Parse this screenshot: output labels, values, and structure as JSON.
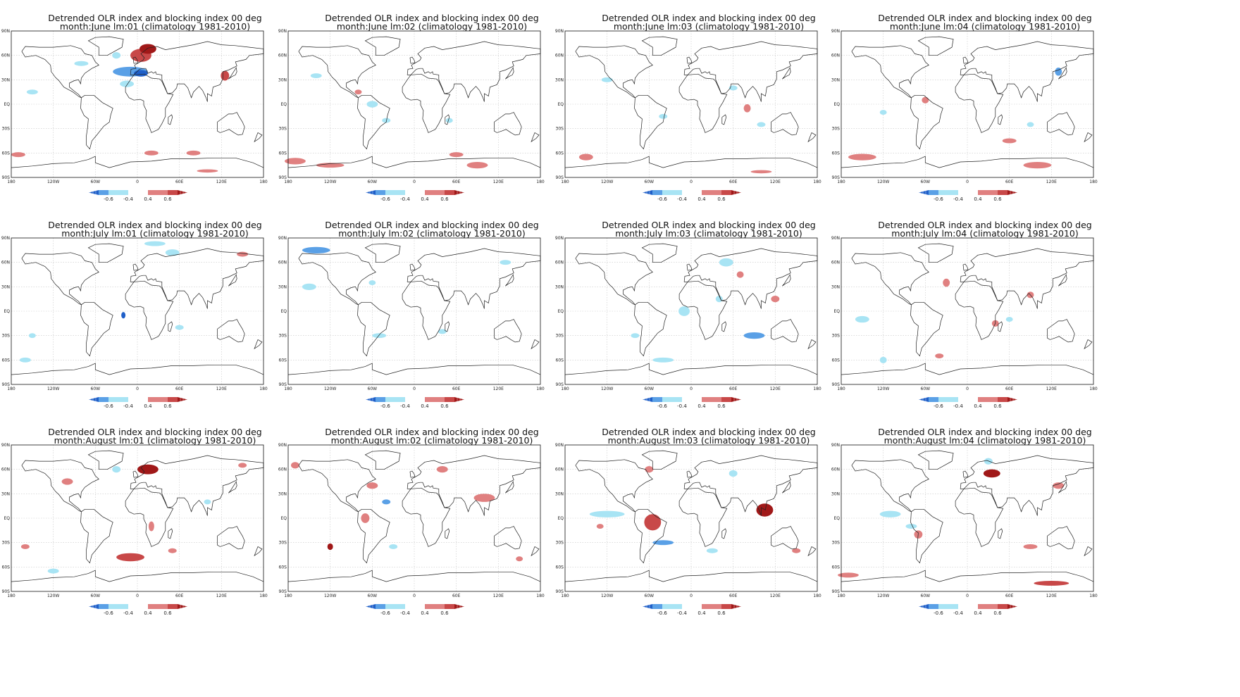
{
  "colorbar": {
    "labels": [
      "-0.6",
      "-0.4",
      "0.4",
      "0.6"
    ],
    "colors": {
      "neg_strong": "#1f5fc8",
      "neg_mid": "#5aa0e6",
      "neg_weak": "#a8e4f4",
      "pos_weak": "#e08080",
      "pos_mid": "#c84848",
      "pos_strong": "#a01818"
    }
  },
  "axes": {
    "lon_ticks": [
      "180",
      "120W",
      "60W",
      "0",
      "60E",
      "120E",
      "180"
    ],
    "lat_ticks": [
      "90N",
      "60N",
      "30N",
      "EQ",
      "30S",
      "60S",
      "90S"
    ]
  },
  "panels": [
    {
      "title": "Detrended OLR index and blocking index 00 deg",
      "subtitle": "month:June lm:01 (climatology 1981-2010)",
      "blobs": [
        [
          "p",
          5,
          60,
          15,
          8,
          0.55
        ],
        [
          "p",
          15,
          68,
          12,
          6,
          0.7
        ],
        [
          "n",
          -10,
          40,
          25,
          6,
          0.5
        ],
        [
          "n",
          5,
          38,
          10,
          4,
          0.7
        ],
        [
          "p",
          125,
          35,
          6,
          6,
          0.5
        ],
        [
          "n",
          -150,
          15,
          8,
          3,
          0.4
        ],
        [
          "n",
          -80,
          50,
          10,
          3,
          0.4
        ],
        [
          "p",
          -170,
          -62,
          10,
          3,
          0.45
        ],
        [
          "p",
          20,
          -60,
          10,
          3,
          0.45
        ],
        [
          "p",
          80,
          -60,
          10,
          3,
          0.45
        ],
        [
          "p",
          100,
          -82,
          15,
          2,
          0.45
        ],
        [
          "n",
          -30,
          60,
          6,
          4,
          0.4
        ],
        [
          "n",
          -15,
          25,
          10,
          4,
          0.4
        ]
      ]
    },
    {
      "title": "Detrended OLR index and blocking index 00 deg",
      "subtitle": "month:June lm:02 (climatology 1981-2010)",
      "blobs": [
        [
          "p",
          -170,
          -70,
          15,
          4,
          0.45
        ],
        [
          "p",
          -120,
          -75,
          20,
          3,
          0.45
        ],
        [
          "p",
          60,
          -62,
          10,
          3,
          0.45
        ],
        [
          "p",
          90,
          -75,
          15,
          4,
          0.45
        ],
        [
          "n",
          -140,
          35,
          8,
          3,
          0.4
        ],
        [
          "n",
          -40,
          -20,
          6,
          3,
          0.4
        ],
        [
          "n",
          -60,
          0,
          8,
          4,
          0.4
        ],
        [
          "p",
          -80,
          15,
          5,
          3,
          0.45
        ],
        [
          "n",
          50,
          -20,
          5,
          3,
          0.4
        ]
      ]
    },
    {
      "title": "Detrended OLR index and blocking index 00 deg",
      "subtitle": "month:June lm:03 (climatology 1981-2010)",
      "blobs": [
        [
          "p",
          80,
          -5,
          5,
          5,
          0.45
        ],
        [
          "p",
          -150,
          -65,
          10,
          4,
          0.45
        ],
        [
          "p",
          100,
          -83,
          15,
          2,
          0.45
        ],
        [
          "n",
          -120,
          30,
          8,
          3,
          0.4
        ],
        [
          "n",
          100,
          -25,
          6,
          3,
          0.4
        ],
        [
          "n",
          60,
          20,
          6,
          3,
          0.4
        ],
        [
          "n",
          -40,
          -15,
          6,
          3,
          0.4
        ]
      ]
    },
    {
      "title": "Detrended OLR index and blocking index 00 deg",
      "subtitle": "month:June lm:04 (climatology 1981-2010)",
      "blobs": [
        [
          "p",
          -150,
          -65,
          20,
          4,
          0.45
        ],
        [
          "p",
          -60,
          5,
          5,
          4,
          0.45
        ],
        [
          "p",
          60,
          -45,
          10,
          3,
          0.45
        ],
        [
          "p",
          100,
          -75,
          20,
          4,
          0.45
        ],
        [
          "n",
          130,
          40,
          5,
          5,
          0.5
        ],
        [
          "n",
          -120,
          -10,
          5,
          3,
          0.4
        ],
        [
          "n",
          90,
          -25,
          5,
          3,
          0.4
        ]
      ]
    },
    {
      "title": "Detrended OLR index and blocking index 00 deg",
      "subtitle": "month:July lm:01 (climatology 1981-2010)",
      "blobs": [
        [
          "n",
          25,
          83,
          15,
          3,
          0.4
        ],
        [
          "n",
          50,
          72,
          10,
          4,
          0.45
        ],
        [
          "p",
          150,
          70,
          8,
          3,
          0.45
        ],
        [
          "n",
          -20,
          -5,
          3,
          4,
          0.6
        ],
        [
          "n",
          60,
          -20,
          6,
          3,
          0.4
        ],
        [
          "n",
          -150,
          -30,
          5,
          3,
          0.4
        ],
        [
          "n",
          -160,
          -60,
          8,
          3,
          0.4
        ]
      ]
    },
    {
      "title": "Detrended OLR index and blocking index 00 deg",
      "subtitle": "month:July lm:02 (climatology 1981-2010)",
      "blobs": [
        [
          "n",
          -140,
          75,
          20,
          4,
          0.5
        ],
        [
          "n",
          -150,
          30,
          10,
          4,
          0.4
        ],
        [
          "n",
          -50,
          -30,
          10,
          3,
          0.4
        ],
        [
          "n",
          40,
          -25,
          6,
          3,
          0.4
        ],
        [
          "n",
          130,
          60,
          8,
          3,
          0.4
        ],
        [
          "n",
          -60,
          35,
          5,
          3,
          0.4
        ]
      ]
    },
    {
      "title": "Detrended OLR index and blocking index 00 deg",
      "subtitle": "month:July lm:03 (climatology 1981-2010)",
      "blobs": [
        [
          "n",
          90,
          -30,
          15,
          4,
          0.55
        ],
        [
          "n",
          -10,
          0,
          8,
          6,
          0.4
        ],
        [
          "n",
          50,
          60,
          10,
          5,
          0.45
        ],
        [
          "p",
          120,
          15,
          6,
          4,
          0.45
        ],
        [
          "p",
          70,
          45,
          5,
          4,
          0.45
        ],
        [
          "n",
          -40,
          -60,
          15,
          3,
          0.4
        ],
        [
          "n",
          -80,
          -30,
          6,
          3,
          0.45
        ],
        [
          "n",
          40,
          15,
          5,
          4,
          0.4
        ]
      ]
    },
    {
      "title": "Detrended OLR index and blocking index 00 deg",
      "subtitle": "month:July lm:04 (climatology 1981-2010)",
      "blobs": [
        [
          "p",
          -30,
          35,
          5,
          5,
          0.45
        ],
        [
          "p",
          40,
          -15,
          5,
          4,
          0.45
        ],
        [
          "p",
          90,
          20,
          5,
          4,
          0.45
        ],
        [
          "n",
          -120,
          -60,
          5,
          4,
          0.45
        ],
        [
          "n",
          -150,
          -10,
          10,
          4,
          0.4
        ],
        [
          "n",
          60,
          -10,
          5,
          3,
          0.4
        ],
        [
          "p",
          -40,
          -55,
          6,
          3,
          0.45
        ]
      ]
    },
    {
      "title": "Detrended OLR index and blocking index 00 deg",
      "subtitle": "month:August lm:01 (climatology 1981-2010)",
      "blobs": [
        [
          "p",
          15,
          60,
          15,
          6,
          0.6
        ],
        [
          "p",
          -10,
          -48,
          20,
          5,
          0.55
        ],
        [
          "p",
          50,
          -40,
          6,
          3,
          0.45
        ],
        [
          "p",
          -100,
          45,
          8,
          4,
          0.45
        ],
        [
          "p",
          20,
          -10,
          4,
          6,
          0.45
        ],
        [
          "p",
          150,
          65,
          6,
          3,
          0.45
        ],
        [
          "n",
          -120,
          -65,
          8,
          3,
          0.4
        ],
        [
          "n",
          100,
          20,
          5,
          3,
          0.4
        ],
        [
          "n",
          -30,
          60,
          6,
          4,
          0.4
        ],
        [
          "p",
          -160,
          -35,
          6,
          3,
          0.45
        ]
      ]
    },
    {
      "title": "Detrended OLR index and blocking index 00 deg",
      "subtitle": "month:August lm:02 (climatology 1981-2010)",
      "blobs": [
        [
          "p",
          100,
          25,
          15,
          5,
          0.45
        ],
        [
          "p",
          -120,
          -35,
          4,
          4,
          0.6
        ],
        [
          "p",
          -70,
          0,
          6,
          6,
          0.45
        ],
        [
          "p",
          -60,
          40,
          8,
          4,
          0.45
        ],
        [
          "n",
          -40,
          20,
          6,
          3,
          0.5
        ],
        [
          "p",
          40,
          60,
          8,
          4,
          0.45
        ],
        [
          "p",
          -170,
          65,
          6,
          4,
          0.45
        ],
        [
          "n",
          -30,
          -35,
          6,
          3,
          0.4
        ],
        [
          "p",
          150,
          -50,
          5,
          3,
          0.45
        ]
      ]
    },
    {
      "title": "Detrended OLR index and blocking index 00 deg",
      "subtitle": "month:August lm:03 (climatology 1981-2010)",
      "blobs": [
        [
          "n",
          -120,
          5,
          25,
          4,
          0.45
        ],
        [
          "p",
          -55,
          -5,
          12,
          10,
          0.5
        ],
        [
          "n",
          -40,
          -30,
          15,
          3,
          0.5
        ],
        [
          "p",
          105,
          10,
          12,
          8,
          0.6
        ],
        [
          "p",
          -130,
          -10,
          5,
          3,
          0.45
        ],
        [
          "n",
          30,
          -40,
          8,
          3,
          0.4
        ],
        [
          "p",
          -60,
          60,
          6,
          4,
          0.45
        ],
        [
          "n",
          60,
          55,
          6,
          4,
          0.4
        ],
        [
          "p",
          150,
          -40,
          6,
          3,
          0.45
        ]
      ]
    },
    {
      "title": "Detrended OLR index and blocking index 00 deg",
      "subtitle": "month:August lm:04 (climatology 1981-2010)",
      "blobs": [
        [
          "p",
          35,
          55,
          12,
          5,
          0.6
        ],
        [
          "p",
          120,
          -80,
          25,
          3,
          0.5
        ],
        [
          "n",
          -110,
          5,
          15,
          4,
          0.4
        ],
        [
          "p",
          -70,
          -20,
          6,
          5,
          0.45
        ],
        [
          "p",
          90,
          -35,
          10,
          3,
          0.45
        ],
        [
          "n",
          30,
          70,
          6,
          4,
          0.45
        ],
        [
          "p",
          -170,
          -70,
          15,
          3,
          0.45
        ],
        [
          "p",
          130,
          40,
          8,
          4,
          0.45
        ],
        [
          "n",
          -80,
          -10,
          8,
          3,
          0.4
        ]
      ]
    }
  ]
}
